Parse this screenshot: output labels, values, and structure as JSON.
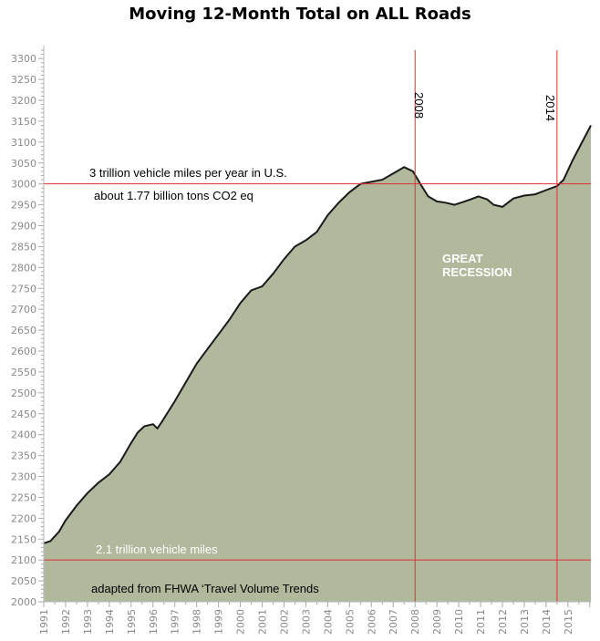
{
  "title": "Moving 12-Month Total on ALL Roads",
  "colors": {
    "area_fill": "#b0b99c",
    "line": "#1a1a1a",
    "reference_lines": "#e03030",
    "grid": "#dddddd"
  },
  "chart_data": {
    "type": "area",
    "title": "Moving 12-Month Total on ALL Roads",
    "xlabel": "",
    "ylabel": "",
    "xlim": [
      1991,
      2016.05
    ],
    "ylim": [
      2000,
      3320
    ],
    "y_ticks": [
      2000,
      2050,
      2100,
      2150,
      2200,
      2250,
      2300,
      2350,
      2400,
      2450,
      2500,
      2550,
      2600,
      2650,
      2700,
      2750,
      2800,
      2850,
      2900,
      2950,
      3000,
      3050,
      3100,
      3150,
      3200,
      3250,
      3300
    ],
    "x_ticks": [
      "1991",
      "1992",
      "1993",
      "1994",
      "1995",
      "1996",
      "1997",
      "1998",
      "1999",
      "2000",
      "2001",
      "2002",
      "2003",
      "2004",
      "2005",
      "2006",
      "2007",
      "2008",
      "2009",
      "2010",
      "2011",
      "2012",
      "2013",
      "2014",
      "2015"
    ],
    "grid": "horizontal minor ticks only",
    "x": [
      1991.0,
      1991.3,
      1991.7,
      1992.0,
      1992.5,
      1993.0,
      1993.5,
      1994.0,
      1994.5,
      1995.0,
      1995.3,
      1995.6,
      1996.0,
      1996.2,
      1996.4,
      1997.0,
      1997.5,
      1998.0,
      1998.5,
      1999.0,
      1999.5,
      2000.0,
      2000.5,
      2001.0,
      2001.5,
      2002.0,
      2002.5,
      2003.0,
      2003.5,
      2004.0,
      2004.5,
      2005.0,
      2005.5,
      2006.0,
      2006.5,
      2007.0,
      2007.5,
      2007.9,
      2008.3,
      2008.6,
      2009.0,
      2009.4,
      2009.8,
      2010.1,
      2010.5,
      2010.9,
      2011.3,
      2011.6,
      2012.0,
      2012.5,
      2013.0,
      2013.5,
      2014.0,
      2014.5,
      2014.8,
      2015.2,
      2015.6,
      2016.05
    ],
    "values": [
      2140,
      2145,
      2168,
      2195,
      2230,
      2260,
      2285,
      2305,
      2335,
      2380,
      2405,
      2420,
      2425,
      2415,
      2430,
      2480,
      2525,
      2570,
      2605,
      2640,
      2675,
      2715,
      2745,
      2755,
      2785,
      2820,
      2850,
      2865,
      2885,
      2925,
      2955,
      2980,
      3000,
      3005,
      3010,
      3025,
      3040,
      3030,
      2995,
      2970,
      2958,
      2955,
      2950,
      2955,
      2962,
      2970,
      2963,
      2950,
      2945,
      2965,
      2972,
      2975,
      2985,
      2995,
      3010,
      3055,
      3095,
      3140
    ],
    "reference_lines": {
      "horizontal": [
        3000,
        2100
      ],
      "vertical": [
        "2008",
        "2014"
      ]
    },
    "annotations": {
      "line_3000": "3 trillion vehicle miles per year  in U.S.",
      "line_3000_sub": "about 1.77 billion tons CO2 eq",
      "recession_1": "GREAT",
      "recession_2": "RECESSION",
      "line_2100": "2.1 trillion vehicle miles",
      "source": "adapted from FHWA ‘Travel Volume Trends",
      "v_2008": "2008",
      "v_2014": "2014"
    }
  }
}
